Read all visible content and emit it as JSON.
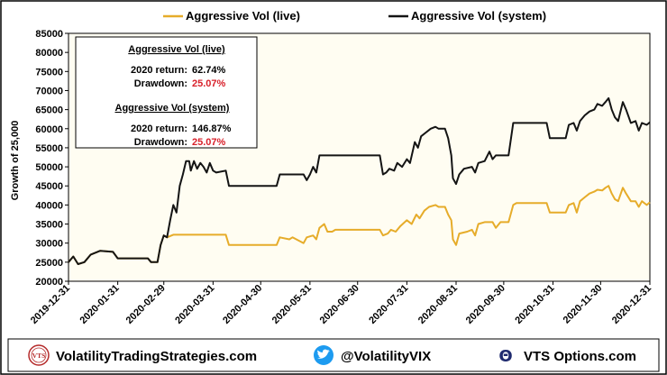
{
  "chart_data": {
    "type": "line",
    "ylabel": "Growth of 25,000",
    "ylim": [
      20000,
      85000
    ],
    "yticks": [
      20000,
      25000,
      30000,
      35000,
      40000,
      45000,
      50000,
      55000,
      60000,
      65000,
      70000,
      75000,
      80000,
      85000
    ],
    "ytick_labels": [
      "20000",
      "25000",
      "30000",
      "35000",
      "40000",
      "45000",
      "50000",
      "55000",
      "60000",
      "65000",
      "70000",
      "75000",
      "80000",
      "85000"
    ],
    "xlim": [
      "2019-12-31",
      "2020-12-31"
    ],
    "x_tick_labels": [
      "2019-12-31",
      "2020-01-31",
      "2020-02-29",
      "2020-03-31",
      "2020-04-30",
      "2020-05-31",
      "2020-06-30",
      "2020-07-31",
      "2020-08-31",
      "2020-09-30",
      "2020-10-31",
      "2020-11-30",
      "2020-12-31"
    ],
    "grid": false,
    "legend_position": "top",
    "series": [
      {
        "name": "Aggressive Vol  (live)",
        "color": "#e6ac2a",
        "points": [
          [
            "2019-12-31",
            25000
          ],
          [
            "2020-01-03",
            26500
          ],
          [
            "2020-01-06",
            24500
          ],
          [
            "2020-01-10",
            25000
          ],
          [
            "2020-01-14",
            27000
          ],
          [
            "2020-01-20",
            28000
          ],
          [
            "2020-01-28",
            27700
          ],
          [
            "2020-01-31",
            26000
          ],
          [
            "2020-02-10",
            26000
          ],
          [
            "2020-02-19",
            26000
          ],
          [
            "2020-02-21",
            25000
          ],
          [
            "2020-02-25",
            25000
          ],
          [
            "2020-02-27",
            29500
          ],
          [
            "2020-02-29",
            32000
          ],
          [
            "2020-03-02",
            31500
          ],
          [
            "2020-03-06",
            32200
          ],
          [
            "2020-04-08",
            32200
          ],
          [
            "2020-04-10",
            29500
          ],
          [
            "2020-05-10",
            29500
          ],
          [
            "2020-05-12",
            31500
          ],
          [
            "2020-05-18",
            31000
          ],
          [
            "2020-05-20",
            31500
          ],
          [
            "2020-05-27",
            30000
          ],
          [
            "2020-05-29",
            31500
          ],
          [
            "2020-06-02",
            32000
          ],
          [
            "2020-06-04",
            31000
          ],
          [
            "2020-06-06",
            34000
          ],
          [
            "2020-06-09",
            35000
          ],
          [
            "2020-06-11",
            33000
          ],
          [
            "2020-06-14",
            33000
          ],
          [
            "2020-06-16",
            33500
          ],
          [
            "2020-07-14",
            33500
          ],
          [
            "2020-07-16",
            32000
          ],
          [
            "2020-07-19",
            32500
          ],
          [
            "2020-07-21",
            33500
          ],
          [
            "2020-07-24",
            33000
          ],
          [
            "2020-07-27",
            34500
          ],
          [
            "2020-07-31",
            36000
          ],
          [
            "2020-08-03",
            35000
          ],
          [
            "2020-08-06",
            37500
          ],
          [
            "2020-08-08",
            36500
          ],
          [
            "2020-08-11",
            38500
          ],
          [
            "2020-08-14",
            39500
          ],
          [
            "2020-08-18",
            40000
          ],
          [
            "2020-08-20",
            39500
          ],
          [
            "2020-08-24",
            39500
          ],
          [
            "2020-08-26",
            37500
          ],
          [
            "2020-08-28",
            36000
          ],
          [
            "2020-08-29",
            31000
          ],
          [
            "2020-08-31",
            29500
          ],
          [
            "2020-09-02",
            32500
          ],
          [
            "2020-09-07",
            33000
          ],
          [
            "2020-09-10",
            33500
          ],
          [
            "2020-09-12",
            32000
          ],
          [
            "2020-09-14",
            35000
          ],
          [
            "2020-09-18",
            35500
          ],
          [
            "2020-09-23",
            35500
          ],
          [
            "2020-09-25",
            34000
          ],
          [
            "2020-09-28",
            35500
          ],
          [
            "2020-10-03",
            35500
          ],
          [
            "2020-10-06",
            40000
          ],
          [
            "2020-10-08",
            40500
          ],
          [
            "2020-10-27",
            40500
          ],
          [
            "2020-10-29",
            38000
          ],
          [
            "2020-11-08",
            38000
          ],
          [
            "2020-11-10",
            40000
          ],
          [
            "2020-11-13",
            40500
          ],
          [
            "2020-11-15",
            38000
          ],
          [
            "2020-11-17",
            41000
          ],
          [
            "2020-11-20",
            42000
          ],
          [
            "2020-11-23",
            43000
          ],
          [
            "2020-11-26",
            43500
          ],
          [
            "2020-11-28",
            44000
          ],
          [
            "2020-12-01",
            43800
          ],
          [
            "2020-12-03",
            44500
          ],
          [
            "2020-12-05",
            45000
          ],
          [
            "2020-12-07",
            43000
          ],
          [
            "2020-12-09",
            41500
          ],
          [
            "2020-12-11",
            41000
          ],
          [
            "2020-12-14",
            44500
          ],
          [
            "2020-12-16",
            43000
          ],
          [
            "2020-12-19",
            41000
          ],
          [
            "2020-12-22",
            41000
          ],
          [
            "2020-12-24",
            39500
          ],
          [
            "2020-12-26",
            41000
          ],
          [
            "2020-12-29",
            40000
          ],
          [
            "2020-12-31",
            40700
          ]
        ]
      },
      {
        "name": "Aggressive Vol  (system)",
        "color": "#141414",
        "points": [
          [
            "2019-12-31",
            25000
          ],
          [
            "2020-01-03",
            26500
          ],
          [
            "2020-01-06",
            24500
          ],
          [
            "2020-01-10",
            25000
          ],
          [
            "2020-01-14",
            27000
          ],
          [
            "2020-01-20",
            28000
          ],
          [
            "2020-01-28",
            27700
          ],
          [
            "2020-01-31",
            26000
          ],
          [
            "2020-02-10",
            26000
          ],
          [
            "2020-02-19",
            26000
          ],
          [
            "2020-02-21",
            25000
          ],
          [
            "2020-02-25",
            25000
          ],
          [
            "2020-02-27",
            29500
          ],
          [
            "2020-02-29",
            32000
          ],
          [
            "2020-03-02",
            31500
          ],
          [
            "2020-03-04",
            36000
          ],
          [
            "2020-03-06",
            40000
          ],
          [
            "2020-03-08",
            38000
          ],
          [
            "2020-03-10",
            45000
          ],
          [
            "2020-03-12",
            48000
          ],
          [
            "2020-03-14",
            51500
          ],
          [
            "2020-03-16",
            51500
          ],
          [
            "2020-03-17",
            49000
          ],
          [
            "2020-03-19",
            51500
          ],
          [
            "2020-03-21",
            49500
          ],
          [
            "2020-03-23",
            51000
          ],
          [
            "2020-03-25",
            50000
          ],
          [
            "2020-03-27",
            48500
          ],
          [
            "2020-03-29",
            51000
          ],
          [
            "2020-03-31",
            49000
          ],
          [
            "2020-04-02",
            48500
          ],
          [
            "2020-04-08",
            49000
          ],
          [
            "2020-04-10",
            45000
          ],
          [
            "2020-05-10",
            45000
          ],
          [
            "2020-05-12",
            48000
          ],
          [
            "2020-05-27",
            48000
          ],
          [
            "2020-05-29",
            46500
          ],
          [
            "2020-05-31",
            48000
          ],
          [
            "2020-06-02",
            50000
          ],
          [
            "2020-06-04",
            48500
          ],
          [
            "2020-06-06",
            53000
          ],
          [
            "2020-07-14",
            53000
          ],
          [
            "2020-07-16",
            48000
          ],
          [
            "2020-07-18",
            48500
          ],
          [
            "2020-07-20",
            49500
          ],
          [
            "2020-07-23",
            49000
          ],
          [
            "2020-07-25",
            51000
          ],
          [
            "2020-07-28",
            50000
          ],
          [
            "2020-07-31",
            52000
          ],
          [
            "2020-08-02",
            51000
          ],
          [
            "2020-08-05",
            56500
          ],
          [
            "2020-08-07",
            55000
          ],
          [
            "2020-08-09",
            58000
          ],
          [
            "2020-08-12",
            59000
          ],
          [
            "2020-08-15",
            60000
          ],
          [
            "2020-08-18",
            60500
          ],
          [
            "2020-08-20",
            60000
          ],
          [
            "2020-08-24",
            60000
          ],
          [
            "2020-08-26",
            57500
          ],
          [
            "2020-08-28",
            53000
          ],
          [
            "2020-08-29",
            47000
          ],
          [
            "2020-08-31",
            45500
          ],
          [
            "2020-09-02",
            48000
          ],
          [
            "2020-09-05",
            49500
          ],
          [
            "2020-09-10",
            50000
          ],
          [
            "2020-09-12",
            48500
          ],
          [
            "2020-09-14",
            51000
          ],
          [
            "2020-09-18",
            51500
          ],
          [
            "2020-09-21",
            54000
          ],
          [
            "2020-09-23",
            52000
          ],
          [
            "2020-09-25",
            53000
          ],
          [
            "2020-09-28",
            53000
          ],
          [
            "2020-10-03",
            53000
          ],
          [
            "2020-10-06",
            61500
          ],
          [
            "2020-10-27",
            61500
          ],
          [
            "2020-10-29",
            57500
          ],
          [
            "2020-11-08",
            57500
          ],
          [
            "2020-11-10",
            61000
          ],
          [
            "2020-11-13",
            61500
          ],
          [
            "2020-11-15",
            59500
          ],
          [
            "2020-11-17",
            62000
          ],
          [
            "2020-11-20",
            63500
          ],
          [
            "2020-11-23",
            64500
          ],
          [
            "2020-11-26",
            65000
          ],
          [
            "2020-11-28",
            66500
          ],
          [
            "2020-12-01",
            66000
          ],
          [
            "2020-12-03",
            67000
          ],
          [
            "2020-12-05",
            68000
          ],
          [
            "2020-12-07",
            65000
          ],
          [
            "2020-12-09",
            63000
          ],
          [
            "2020-12-11",
            62000
          ],
          [
            "2020-12-14",
            67000
          ],
          [
            "2020-12-16",
            65000
          ],
          [
            "2020-12-19",
            61500
          ],
          [
            "2020-12-22",
            62000
          ],
          [
            "2020-12-24",
            59500
          ],
          [
            "2020-12-26",
            61500
          ],
          [
            "2020-12-29",
            61000
          ],
          [
            "2020-12-31",
            61700
          ]
        ]
      }
    ]
  },
  "info_box": {
    "live": {
      "title": "Aggressive Vol  (live)",
      "return_label": "2020 return:",
      "return_value": "62.74%",
      "drawdown_label": "Drawdown:",
      "drawdown_value": "25.07%"
    },
    "system": {
      "title": "Aggressive Vol  (system)",
      "return_label": "2020 return:",
      "return_value": "146.87%",
      "drawdown_label": "Drawdown:",
      "drawdown_value": "25.07%"
    },
    "drawdown_color": "#d8202a"
  },
  "footer": {
    "website": "VolatilityTradingStrategies.com",
    "website_logo_text": "VTS",
    "twitter": "@VolatilityVIX",
    "twitter_icon": "twitter-bird-icon",
    "options": "VTS Options.com",
    "options_icon": "theta-icon",
    "options_icon_glyph": "Θ"
  },
  "colors": {
    "page_background": "#ffffff",
    "plot_background": "#fffdf2",
    "border": "#000000",
    "twitter_blue": "#1d9bf0",
    "theta_navy": "#1f2a6e",
    "logo_red": "#b52b2b"
  }
}
